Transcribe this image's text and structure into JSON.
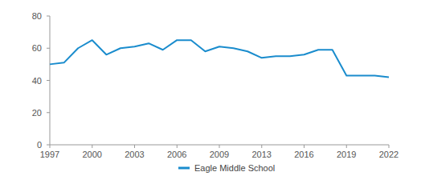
{
  "chart_data": {
    "type": "line",
    "categories": [
      "1997",
      null,
      null,
      "2000",
      null,
      null,
      "2003",
      null,
      null,
      "2006",
      null,
      null,
      "2009",
      null,
      null,
      "2013",
      null,
      null,
      "2016",
      null,
      null,
      "2019",
      null,
      null,
      "2022"
    ],
    "series": [
      {
        "name": "Eagle Middle School",
        "color": "#1a8ccd",
        "values": [
          50,
          51,
          60,
          65,
          56,
          60,
          61,
          63,
          59,
          65,
          65,
          58,
          61,
          60,
          58,
          54,
          55,
          55,
          56,
          59,
          59,
          43,
          43,
          43,
          42
        ]
      }
    ],
    "ylim": [
      0,
      80
    ],
    "yticks": [
      0,
      20,
      40,
      60,
      80
    ],
    "grid": false
  }
}
